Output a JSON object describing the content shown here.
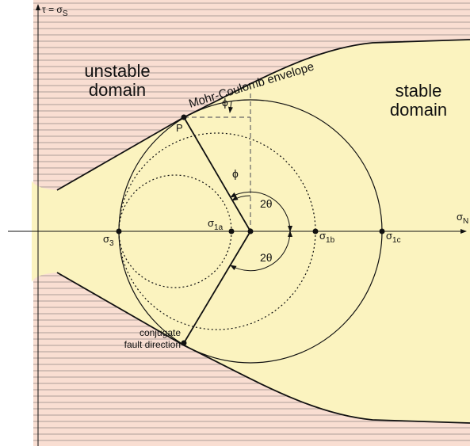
{
  "axes": {
    "y_label": {
      "symbol": "τ = σ",
      "sub": "S"
    },
    "x_label": {
      "symbol": "σ",
      "sub": "N"
    }
  },
  "domains": {
    "unstable": [
      "unstable",
      "domain"
    ],
    "stable": [
      "stable",
      "domain"
    ]
  },
  "envelope": "Mohr-Coulomb envelope",
  "point_p": "P",
  "angles": {
    "phi_top": "ϕ",
    "phi_center": "ϕ",
    "two_theta_upper": "2θ",
    "two_theta_lower": "2θ"
  },
  "stresses": [
    {
      "symbol": "σ",
      "sub": "3"
    },
    {
      "symbol": "σ",
      "sub": "1a"
    },
    {
      "symbol": "σ",
      "sub": "1b"
    },
    {
      "symbol": "σ",
      "sub": "1c"
    }
  ],
  "conjugate": [
    "conjugate",
    "fault direction"
  ]
}
